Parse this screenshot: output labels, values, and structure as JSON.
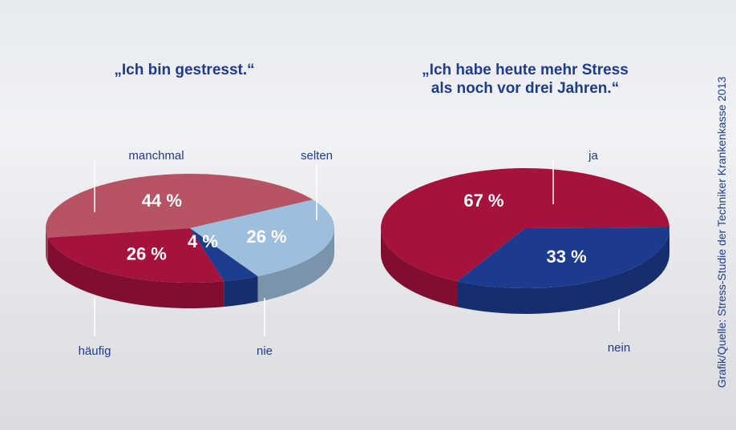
{
  "chart_data": [
    {
      "type": "pie",
      "title": "„Ich bin gestresst.“",
      "categories": [
        "manchmal",
        "selten",
        "nie",
        "häufig"
      ],
      "values": [
        44,
        26,
        4,
        26
      ],
      "value_labels": [
        "44 %",
        "26 %",
        "4 %",
        "26 %"
      ],
      "colors": [
        "#b75464",
        "#9dbedc",
        "#1c3c8e",
        "#a5123c"
      ]
    },
    {
      "type": "pie",
      "title": "„Ich habe heute mehr Stress\nals noch vor drei Jahren.“",
      "categories": [
        "ja",
        "nein"
      ],
      "values": [
        67,
        33
      ],
      "value_labels": [
        "67 %",
        "33 %"
      ],
      "colors": [
        "#a5123c",
        "#1c3a8e"
      ]
    }
  ],
  "source": "Grafik/Quelle: Stress-Studie der Techniker Krankenkasse 2013"
}
